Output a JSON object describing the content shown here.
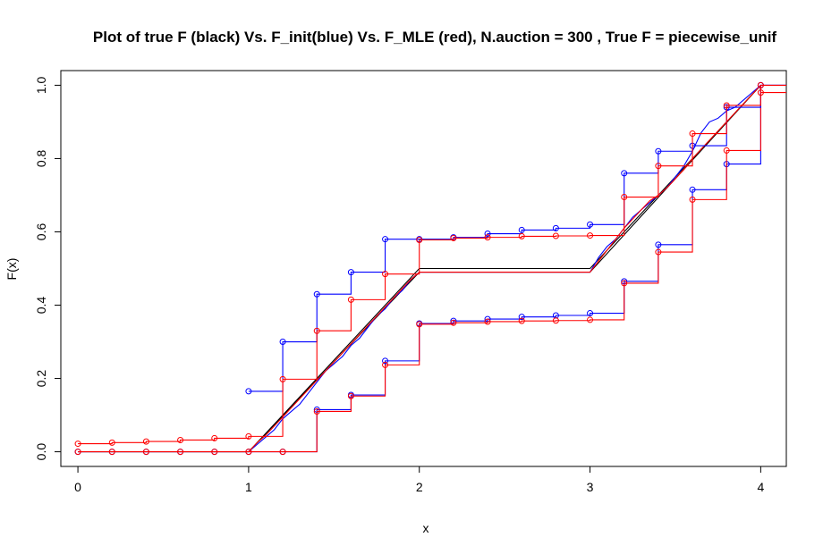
{
  "chart_data": {
    "type": "line",
    "title": "Plot of true F (black) Vs. F_init(blue) Vs. F_MLE (red), N.auction = 300 , True F = piecewise_unif",
    "xlabel": "x",
    "ylabel": "F(x)",
    "xlim": [
      -0.1,
      4.15
    ],
    "ylim": [
      -0.04,
      1.04
    ],
    "x_ticks": [
      "0",
      "1",
      "2",
      "3",
      "4"
    ],
    "y_ticks": [
      "0.0",
      "0.2",
      "0.4",
      "0.6",
      "0.8",
      "1.0"
    ],
    "grid": false,
    "legend": "none",
    "colors": {
      "true": "#000000",
      "init": "#0000ff",
      "mle": "#ff0000"
    },
    "series": [
      {
        "role": "true",
        "values": [
          [
            0,
            0
          ],
          [
            1,
            0
          ],
          [
            2,
            0.5
          ],
          [
            3,
            0.5
          ],
          [
            4,
            1
          ]
        ]
      },
      {
        "role": "true",
        "values": [
          [
            1,
            0
          ],
          [
            2,
            0.49
          ],
          [
            3,
            0.49
          ],
          [
            4,
            1
          ]
        ]
      },
      {
        "role": "init",
        "values": [
          [
            1,
            0
          ],
          [
            1.05,
            0.02
          ],
          [
            1.1,
            0.04
          ],
          [
            1.15,
            0.06
          ],
          [
            1.2,
            0.09
          ],
          [
            1.25,
            0.11
          ],
          [
            1.3,
            0.13
          ],
          [
            1.35,
            0.16
          ],
          [
            1.4,
            0.19
          ],
          [
            1.45,
            0.22
          ],
          [
            1.5,
            0.24
          ],
          [
            1.55,
            0.26
          ],
          [
            1.6,
            0.29
          ],
          [
            1.65,
            0.31
          ],
          [
            1.7,
            0.34
          ],
          [
            1.75,
            0.37
          ],
          [
            1.8,
            0.39
          ],
          [
            1.85,
            0.42
          ],
          [
            1.9,
            0.44
          ],
          [
            1.95,
            0.47
          ],
          [
            2,
            0.49
          ],
          [
            3,
            0.49
          ],
          [
            3.05,
            0.53
          ],
          [
            3.1,
            0.56
          ],
          [
            3.15,
            0.58
          ],
          [
            3.2,
            0.61
          ],
          [
            3.25,
            0.64
          ],
          [
            3.3,
            0.66
          ],
          [
            3.35,
            0.68
          ],
          [
            3.4,
            0.7
          ],
          [
            3.45,
            0.72
          ],
          [
            3.5,
            0.75
          ],
          [
            3.55,
            0.78
          ],
          [
            3.6,
            0.82
          ],
          [
            3.65,
            0.87
          ],
          [
            3.7,
            0.9
          ],
          [
            3.75,
            0.91
          ],
          [
            3.8,
            0.93
          ],
          [
            3.85,
            0.94
          ],
          [
            3.9,
            0.96
          ],
          [
            3.95,
            0.98
          ],
          [
            4,
            1
          ]
        ]
      },
      {
        "role": "mle",
        "values": [
          [
            1,
            0
          ],
          [
            1.05,
            0.025
          ],
          [
            1.1,
            0.045
          ],
          [
            1.15,
            0.07
          ],
          [
            1.2,
            0.095
          ],
          [
            1.25,
            0.12
          ],
          [
            1.3,
            0.145
          ],
          [
            1.35,
            0.17
          ],
          [
            1.4,
            0.195
          ],
          [
            1.45,
            0.22
          ],
          [
            1.5,
            0.245
          ],
          [
            1.55,
            0.27
          ],
          [
            1.6,
            0.295
          ],
          [
            1.65,
            0.32
          ],
          [
            1.7,
            0.345
          ],
          [
            1.75,
            0.37
          ],
          [
            1.8,
            0.395
          ],
          [
            1.85,
            0.42
          ],
          [
            1.9,
            0.445
          ],
          [
            1.95,
            0.47
          ],
          [
            2,
            0.49
          ],
          [
            3,
            0.49
          ],
          [
            3.05,
            0.52
          ],
          [
            3.1,
            0.55
          ],
          [
            3.15,
            0.58
          ],
          [
            3.2,
            0.61
          ],
          [
            3.25,
            0.635
          ],
          [
            3.3,
            0.66
          ],
          [
            3.35,
            0.685
          ],
          [
            3.4,
            0.7
          ],
          [
            3.45,
            0.72
          ],
          [
            3.5,
            0.745
          ],
          [
            3.55,
            0.77
          ],
          [
            3.6,
            0.8
          ],
          [
            3.65,
            0.825
          ],
          [
            3.7,
            0.85
          ],
          [
            3.75,
            0.875
          ],
          [
            3.8,
            0.9
          ],
          [
            3.85,
            0.925
          ],
          [
            3.9,
            0.95
          ],
          [
            3.95,
            0.975
          ],
          [
            4,
            1
          ]
        ]
      },
      {
        "role": "init",
        "step": true,
        "values": [
          [
            0,
            0
          ],
          [
            0.2,
            0
          ],
          [
            0.4,
            0
          ],
          [
            0.6,
            0
          ],
          [
            0.8,
            0
          ],
          [
            1,
            0
          ],
          [
            1.2,
            0
          ],
          [
            1.4,
            0.115
          ],
          [
            1.6,
            0.155
          ],
          [
            1.8,
            0.248
          ],
          [
            2,
            0.35
          ],
          [
            2.2,
            0.357
          ],
          [
            2.4,
            0.362
          ],
          [
            2.6,
            0.368
          ],
          [
            2.8,
            0.372
          ],
          [
            3,
            0.378
          ],
          [
            3.2,
            0.465
          ],
          [
            3.4,
            0.565
          ],
          [
            3.6,
            0.715
          ],
          [
            3.8,
            0.785
          ],
          [
            4,
            1
          ]
        ]
      },
      {
        "role": "mle",
        "step": true,
        "values": [
          [
            0,
            0
          ],
          [
            0.2,
            0
          ],
          [
            0.4,
            0
          ],
          [
            0.6,
            0
          ],
          [
            0.8,
            0
          ],
          [
            1,
            0
          ],
          [
            1.2,
            0
          ],
          [
            1.4,
            0.11
          ],
          [
            1.6,
            0.152
          ],
          [
            1.8,
            0.237
          ],
          [
            2,
            0.348
          ],
          [
            2.2,
            0.352
          ],
          [
            2.4,
            0.355
          ],
          [
            2.6,
            0.357
          ],
          [
            2.8,
            0.358
          ],
          [
            3,
            0.36
          ],
          [
            3.2,
            0.46
          ],
          [
            3.4,
            0.545
          ],
          [
            3.6,
            0.688
          ],
          [
            3.8,
            0.822
          ],
          [
            4,
            0.98
          ]
        ]
      },
      {
        "role": "init",
        "step": true,
        "values": [
          [
            1,
            0.165
          ],
          [
            1.2,
            0.3
          ],
          [
            1.4,
            0.43
          ],
          [
            1.6,
            0.49
          ],
          [
            1.8,
            0.58
          ],
          [
            2,
            0.58
          ],
          [
            2.2,
            0.585
          ],
          [
            2.4,
            0.595
          ],
          [
            2.6,
            0.605
          ],
          [
            2.8,
            0.61
          ],
          [
            3,
            0.62
          ],
          [
            3.2,
            0.76
          ],
          [
            3.4,
            0.82
          ],
          [
            3.6,
            0.835
          ],
          [
            3.8,
            0.94
          ],
          [
            4,
            1
          ]
        ]
      },
      {
        "role": "mle",
        "step": true,
        "values": [
          [
            0,
            0.022
          ],
          [
            0.2,
            0.025
          ],
          [
            0.4,
            0.028
          ],
          [
            0.6,
            0.032
          ],
          [
            0.8,
            0.037
          ],
          [
            1,
            0.042
          ],
          [
            1.2,
            0.198
          ],
          [
            1.4,
            0.33
          ],
          [
            1.6,
            0.415
          ],
          [
            1.8,
            0.485
          ],
          [
            2,
            0.578
          ],
          [
            2.2,
            0.583
          ],
          [
            2.4,
            0.585
          ],
          [
            2.6,
            0.588
          ],
          [
            2.8,
            0.589
          ],
          [
            3,
            0.59
          ],
          [
            3.2,
            0.695
          ],
          [
            3.4,
            0.78
          ],
          [
            3.6,
            0.868
          ],
          [
            3.8,
            0.945
          ],
          [
            4,
            1
          ]
        ]
      }
    ]
  }
}
